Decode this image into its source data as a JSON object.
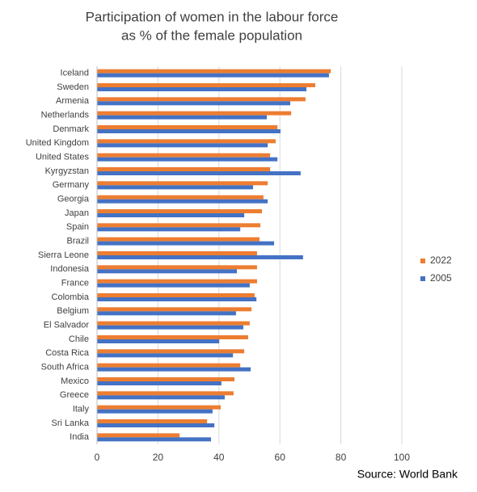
{
  "chart_data": {
    "type": "hbar",
    "title": [
      "Participation of women in the labour force",
      "as % of the female population"
    ],
    "categories": [
      "Iceland",
      "Sweden",
      "Armenia",
      "Netherlands",
      "Denmark",
      "United Kingdom",
      "United States",
      "Kyrgyzstan",
      "Germany",
      "Georgia",
      "Japan",
      "Spain",
      "Brazil",
      "Sierra Leone",
      "Indonesia",
      "France",
      "Colombia",
      "Belgium",
      "El Salvador",
      "Chile",
      "Costa Rica",
      "South Africa",
      "Mexico",
      "Greece",
      "Italy",
      "Sri Lanka",
      "India"
    ],
    "series": [
      {
        "name": "2022",
        "color": "#ed7d31",
        "values": [
          76.7,
          71.6,
          68.4,
          63.7,
          59.2,
          58.6,
          56.8,
          56.8,
          56.0,
          54.6,
          54.1,
          53.6,
          53.3,
          52.5,
          52.5,
          52.5,
          51.7,
          50.7,
          50.1,
          49.6,
          48.3,
          47.0,
          45.1,
          44.8,
          40.6,
          36.1,
          27.1
        ]
      },
      {
        "name": "2005",
        "color": "#4472c4",
        "values": [
          76.1,
          68.7,
          63.4,
          55.7,
          60.2,
          56.0,
          59.2,
          66.8,
          51.2,
          56.0,
          48.3,
          47.0,
          58.1,
          67.6,
          45.9,
          50.1,
          52.3,
          45.6,
          48.0,
          40.1,
          44.6,
          50.4,
          40.8,
          41.9,
          37.9,
          38.5,
          37.4
        ]
      }
    ],
    "xlim": [
      0,
      100
    ],
    "xticks": [
      0,
      20,
      40,
      60,
      80,
      100
    ],
    "grid": true,
    "source": "Source: World Bank"
  }
}
